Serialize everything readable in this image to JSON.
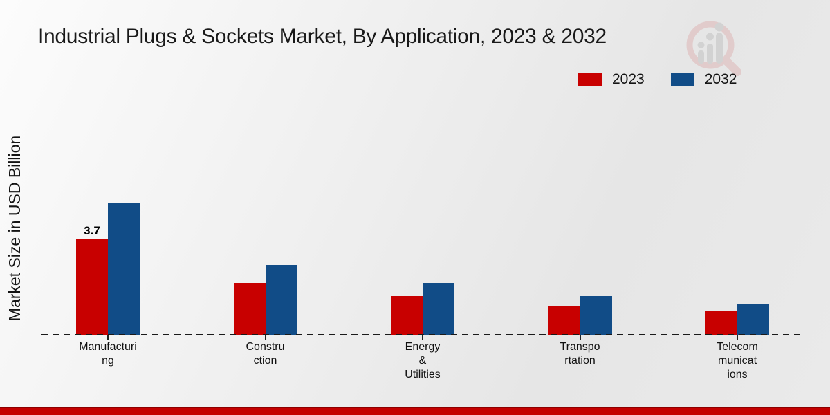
{
  "chart_data": {
    "type": "bar",
    "title": "Industrial Plugs & Sockets Market, By Application, 2023 & 2032",
    "xlabel": "",
    "ylabel": "Market Size in USD Billion",
    "units": "USD Billion",
    "categories": [
      "Manufacturing",
      "Construction",
      "Energy & Utilities",
      "Transportation",
      "Telecommunications"
    ],
    "category_label_lines": [
      [
        "Manufacturi",
        "ng"
      ],
      [
        "Constru",
        "ction"
      ],
      [
        "Energy",
        "&",
        "Utilities"
      ],
      [
        "Transpo",
        "rtation"
      ],
      [
        "Telecom",
        "municat",
        "ions"
      ]
    ],
    "series": [
      {
        "name": "2023",
        "color": "#c80000",
        "values": [
          3.7,
          2.0,
          1.5,
          1.1,
          0.9
        ]
      },
      {
        "name": "2032",
        "color": "#114c87",
        "values": [
          5.1,
          2.7,
          2.0,
          1.5,
          1.2
        ]
      }
    ],
    "shown_data_labels": [
      {
        "series_index": 0,
        "category_index": 0,
        "text": "3.7"
      }
    ],
    "legend_position": "top-right",
    "grid": false,
    "zero_line": "dashed",
    "ylim": [
      0,
      5.5
    ]
  },
  "colors": {
    "accent_red": "#c80000",
    "accent_blue": "#114c87",
    "footer_bar": "#c40000",
    "text": "#191919",
    "background": "#ececec"
  },
  "footer": {
    "accent_bar": ""
  },
  "icons": {
    "logo": "magnifier-trend-chart-watermark"
  }
}
